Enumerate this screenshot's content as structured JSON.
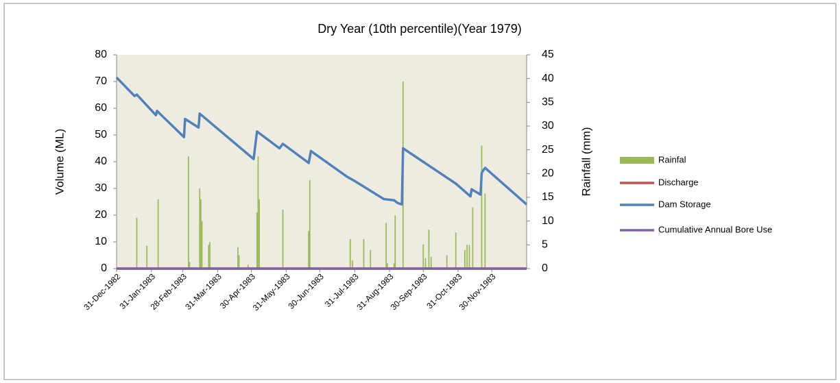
{
  "chart_data": {
    "type": "line",
    "title": "Dry Year (10th percentile)(Year 1979)",
    "y_label": "Volume (ML)",
    "y2_label": "Rainfall (mm)",
    "xlim": [
      0,
      365
    ],
    "xticks": [
      {
        "value": 0,
        "label": "31-Dec-1982"
      },
      {
        "value": 31,
        "label": "31-Jan-1983"
      },
      {
        "value": 59,
        "label": "28-Feb-1983"
      },
      {
        "value": 90,
        "label": "31-Mar-1983"
      },
      {
        "value": 120,
        "label": "30-Apr-1983"
      },
      {
        "value": 151,
        "label": "31-May-1983"
      },
      {
        "value": 181,
        "label": "30-Jun-1983"
      },
      {
        "value": 212,
        "label": "31-Jul-1983"
      },
      {
        "value": 243,
        "label": "31-Aug-1983"
      },
      {
        "value": 273,
        "label": "30-Sep-1983"
      },
      {
        "value": 304,
        "label": "31-Oct-1983"
      },
      {
        "value": 334,
        "label": "30-Nov-1983"
      }
    ],
    "ylim": [
      0,
      80
    ],
    "yticks": [
      0,
      10,
      20,
      30,
      40,
      50,
      60,
      70,
      80
    ],
    "y2lim": [
      0,
      45
    ],
    "y2ticks": [
      0,
      5,
      10,
      15,
      20,
      25,
      30,
      35,
      40,
      45
    ],
    "legend": "right",
    "series": [
      {
        "name": "Rainfal",
        "type": "bar",
        "axis": "y2",
        "color": "#9bbb59",
        "x": [
          18,
          27,
          37,
          64,
          65,
          74,
          75,
          76,
          82,
          83,
          108,
          109,
          117,
          125,
          126,
          127,
          148,
          171,
          172,
          208,
          210,
          220,
          226,
          240,
          241,
          247,
          248,
          255,
          273,
          275,
          278,
          280,
          294,
          302,
          310,
          312,
          314,
          317,
          325,
          328
        ],
        "values": [
          10.7,
          4.8,
          14.6,
          23.6,
          1.4,
          16.9,
          14.6,
          10,
          5,
          5.6,
          4.5,
          2.8,
          0.8,
          11.8,
          23.6,
          14.6,
          12.4,
          7.9,
          18.6,
          6.2,
          1.7,
          6.2,
          3.9,
          9.6,
          1.1,
          1.1,
          11.2,
          39.4,
          5.1,
          2.2,
          8.2,
          2.5,
          2.8,
          7.6,
          3.9,
          5,
          5,
          12.9,
          25.9,
          15.8
        ]
      },
      {
        "name": "Discharge",
        "type": "line",
        "color": "#c0504d",
        "x": [
          0,
          365
        ],
        "values": [
          0,
          0
        ]
      },
      {
        "name": "Dam Storage",
        "type": "line",
        "color": "#4f81bd",
        "x": [
          0,
          16,
          18,
          35,
          36,
          60,
          61,
          73,
          74,
          122,
          125,
          145,
          148,
          171,
          173,
          205,
          211,
          238,
          247,
          250,
          254,
          255,
          302,
          315,
          316,
          324,
          325,
          328,
          365
        ],
        "values": [
          71.5,
          64.6,
          65.1,
          57.4,
          59,
          49.2,
          56,
          52.8,
          58,
          41,
          51.3,
          45,
          46.7,
          39.5,
          44,
          34.4,
          33,
          26,
          25.6,
          24.6,
          24,
          45,
          31.8,
          27,
          29.7,
          27.7,
          35.9,
          37.7,
          24
        ]
      },
      {
        "name": "Cumulative Annual Bore Use",
        "type": "line",
        "color": "#8064a2",
        "x": [
          0,
          365
        ],
        "values": [
          0,
          0
        ]
      }
    ]
  }
}
